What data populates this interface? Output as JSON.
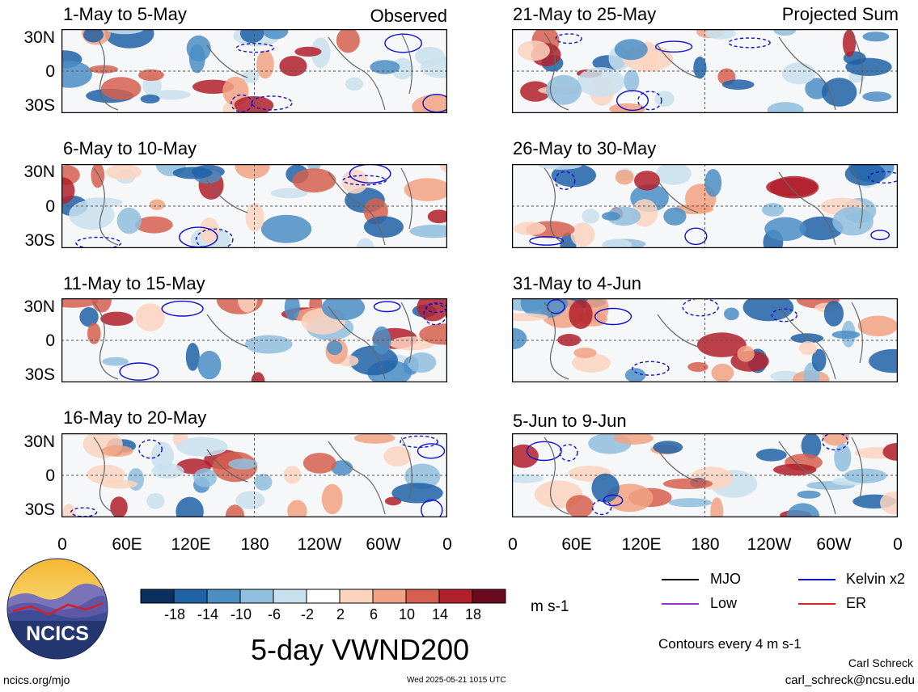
{
  "panels": [
    {
      "title": "1-May to 5-May",
      "tag": "Observed"
    },
    {
      "title": "21-May to 25-May",
      "tag": "Projected Sum"
    },
    {
      "title": "6-May to 10-May",
      "tag": ""
    },
    {
      "title": "26-May to 30-May",
      "tag": ""
    },
    {
      "title": "11-May to 15-May",
      "tag": ""
    },
    {
      "title": "31-May to 4-Jun",
      "tag": ""
    },
    {
      "title": "16-May to 20-May",
      "tag": ""
    },
    {
      "title": "5-Jun to 9-Jun",
      "tag": ""
    }
  ],
  "lat_labels": [
    "30N",
    "0",
    "30S"
  ],
  "lon_labels": [
    "0",
    "60E",
    "120E",
    "180",
    "120W",
    "60W",
    "0"
  ],
  "colorbar": {
    "ticks": [
      "-18",
      "-14",
      "-10",
      "-6",
      "-2",
      "2",
      "6",
      "10",
      "14",
      "18"
    ],
    "colors": [
      "#0b2f5e",
      "#1f62a6",
      "#4b8ec4",
      "#8fbede",
      "#c9e0ef",
      "#ffffff",
      "#fbd3bf",
      "#f1a283",
      "#d5604f",
      "#b1202b",
      "#6b0a1f"
    ],
    "units": "m s-1"
  },
  "legend": {
    "items": [
      {
        "label": "MJO",
        "color": "#000000"
      },
      {
        "label": "Kelvin x2",
        "color": "#1010d0"
      },
      {
        "label": "Low",
        "color": "#9a30c8"
      },
      {
        "label": "ER",
        "color": "#e02020"
      }
    ],
    "contours_note": "Contours every 4 m s-1"
  },
  "logo_text": "NCICS",
  "main_title": "5-day VWND200",
  "footer": {
    "url": "ncics.org/mjo",
    "timestamp": "Wed 2025-05-21 1015 UTC",
    "author": "Carl Schreck",
    "email": "carl_schreck@ncsu.edu"
  }
}
